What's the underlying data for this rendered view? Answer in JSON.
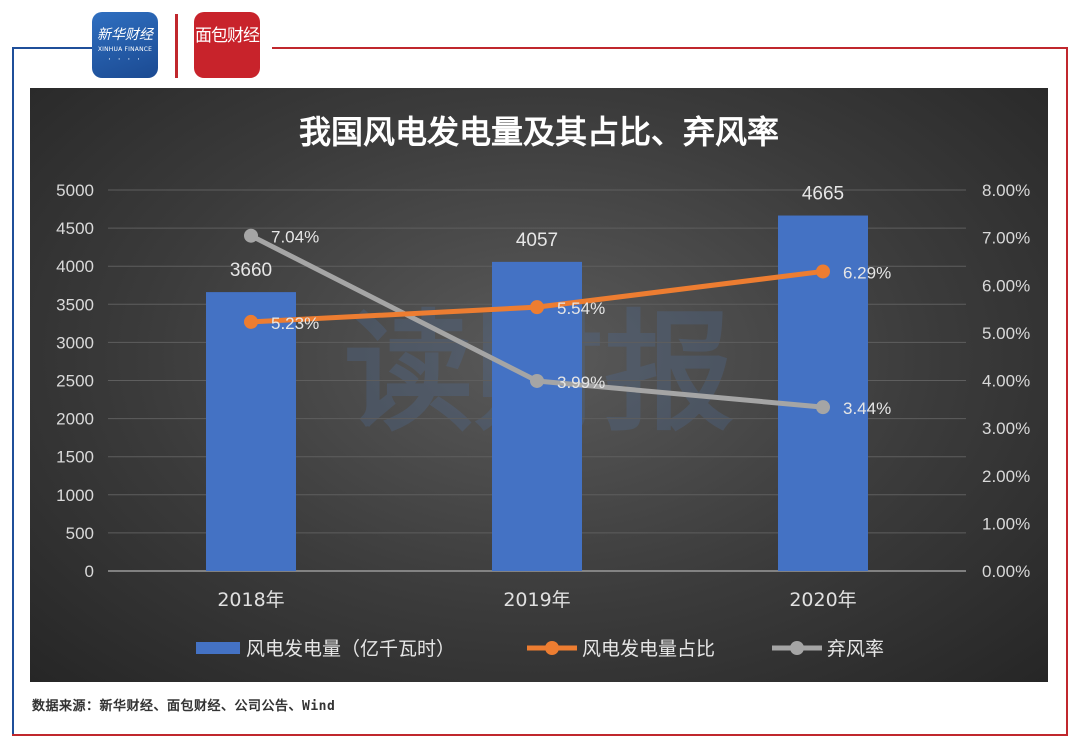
{
  "logos": {
    "xinhua_cn": "新华财经",
    "xinhua_en": "XINHUA FINANCE",
    "mianbao": "面包财经"
  },
  "watermark": "读财报",
  "source": "数据来源：新华财经、面包财经、公司公告、Wind",
  "colors": {
    "bar": "#4472c4",
    "share_line": "#ed7d31",
    "curtail_line": "#a5a5a5",
    "frame_red": "#c0272d",
    "frame_blue": "#1f4f9a"
  },
  "chart_data": {
    "type": "bar",
    "title": "我国风电发电量及其占比、弃风率",
    "categories": [
      "2018年",
      "2019年",
      "2020年"
    ],
    "series": [
      {
        "name": "风电发电量（亿千瓦时）",
        "type": "bar",
        "axis": "left",
        "values": [
          3660,
          4057,
          4665
        ],
        "labels": [
          "3660",
          "4057",
          "4665"
        ]
      },
      {
        "name": "风电发电量占比",
        "type": "line",
        "axis": "right",
        "values": [
          5.23,
          5.54,
          6.29
        ],
        "labels": [
          "5.23%",
          "5.54%",
          "6.29%"
        ]
      },
      {
        "name": "弃风率",
        "type": "line",
        "axis": "right",
        "values": [
          7.04,
          3.99,
          3.44
        ],
        "labels": [
          "7.04%",
          "3.99%",
          "3.44%"
        ]
      }
    ],
    "y_left": {
      "min": 0,
      "max": 5000,
      "ticks": [
        "0",
        "500",
        "1000",
        "1500",
        "2000",
        "2500",
        "3000",
        "3500",
        "4000",
        "4500",
        "5000"
      ]
    },
    "y_right": {
      "min": 0,
      "max": 8,
      "ticks": [
        "0.00%",
        "1.00%",
        "2.00%",
        "3.00%",
        "4.00%",
        "5.00%",
        "6.00%",
        "7.00%",
        "8.00%"
      ]
    },
    "grid": true,
    "legend_position": "bottom"
  }
}
